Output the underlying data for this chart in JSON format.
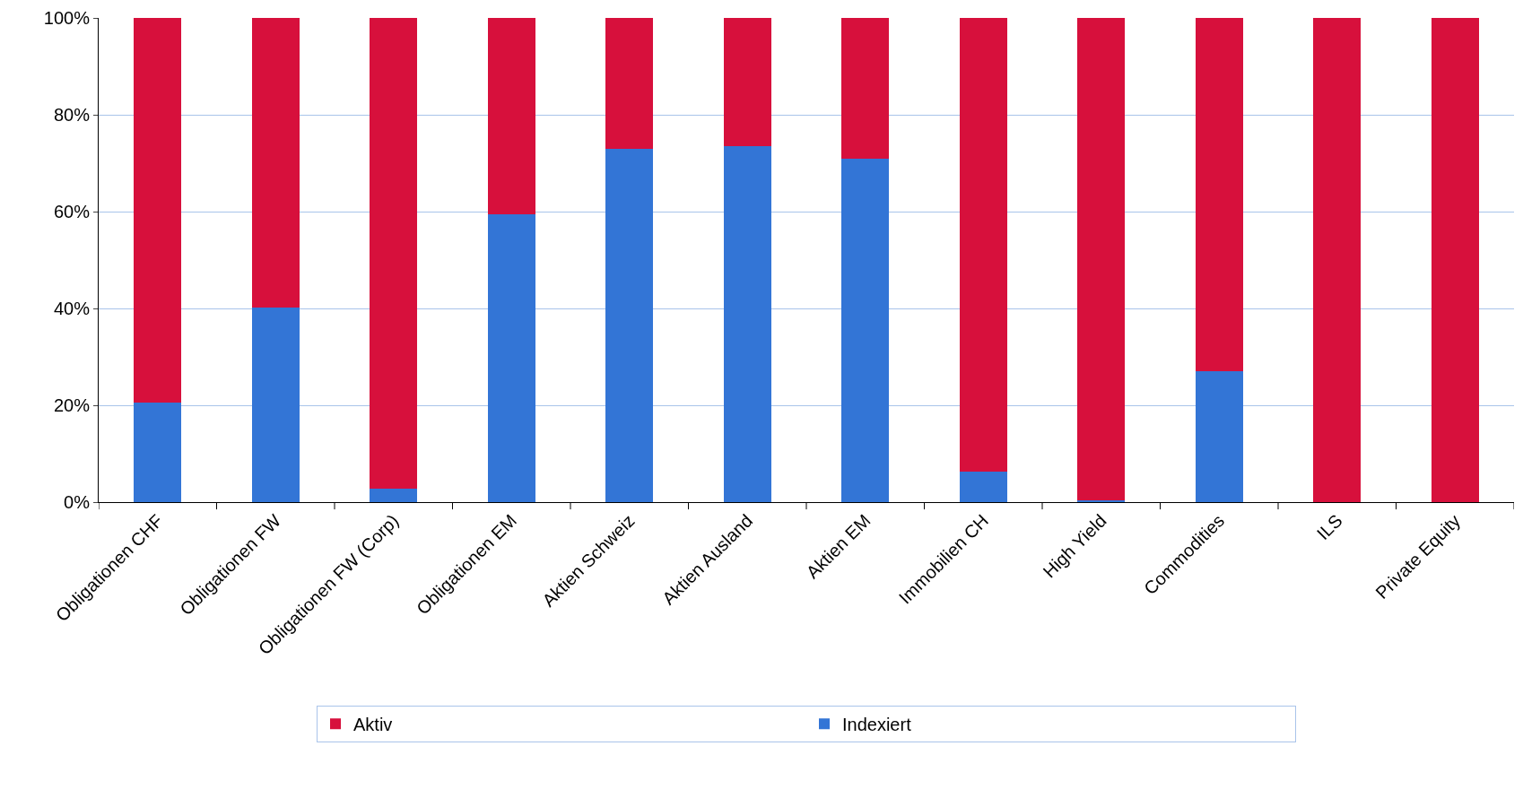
{
  "chart_data": {
    "type": "bar",
    "stacked": true,
    "categories": [
      "Obligationen CHF",
      "Obligationen FW",
      "Obligationen FW (Corp)",
      "Obligationen EM",
      "Aktien Schweiz",
      "Aktien Ausland",
      "Aktien EM",
      "Immobilien CH",
      "High Yield",
      "Commodities",
      "ILS",
      "Private Equity"
    ],
    "series": [
      {
        "name": "Indexiert",
        "color": "#3375d6",
        "values": [
          20.5,
          40.2,
          2.8,
          59.4,
          73.0,
          73.6,
          71.0,
          6.3,
          0.3,
          27.0,
          0,
          0
        ]
      },
      {
        "name": "Aktiv",
        "color": "#d7103c",
        "values": [
          79.5,
          59.8,
          97.2,
          40.6,
          27.0,
          26.4,
          29.0,
          93.7,
          99.7,
          73.0,
          100,
          100
        ]
      }
    ],
    "ylim": [
      0,
      100
    ],
    "yticks": [
      {
        "value": 0,
        "label": "0%"
      },
      {
        "value": 20,
        "label": "20%"
      },
      {
        "value": 40,
        "label": "40%"
      },
      {
        "value": 60,
        "label": "60%"
      },
      {
        "value": 80,
        "label": "80%"
      },
      {
        "value": 100,
        "label": "100%"
      }
    ],
    "grid": "y",
    "legend": "bottom"
  }
}
